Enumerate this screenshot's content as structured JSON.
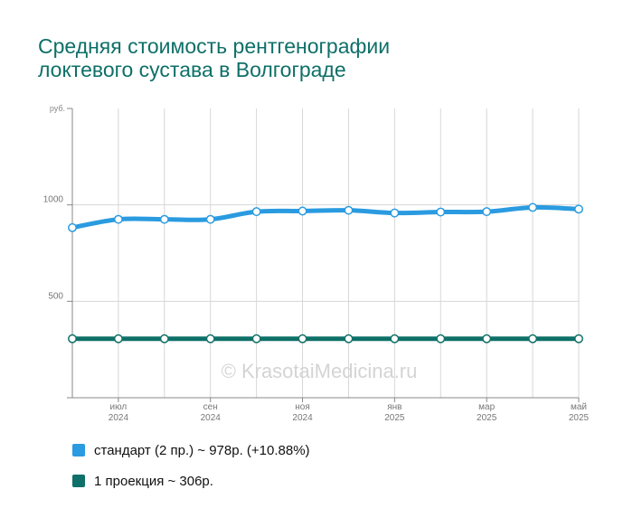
{
  "title": {
    "line1": "Средняя стоимость рентгенографии",
    "line2": "локтевого сустава в Волгограде"
  },
  "watermark": "© KrasotaiMedicina.ru",
  "chart_data": {
    "type": "line",
    "ylabel": "руб.",
    "ylim": [
      0,
      1500
    ],
    "yticks": [
      {
        "value": 1000,
        "label": "1000"
      },
      {
        "value": 500,
        "label": "500"
      }
    ],
    "x": [
      0,
      1,
      2,
      3,
      4,
      5,
      6,
      7,
      8,
      9,
      10,
      11
    ],
    "x_tick_labels": [
      {
        "index": 1,
        "month": "июл",
        "year": "2024"
      },
      {
        "index": 3,
        "month": "сен",
        "year": "2024"
      },
      {
        "index": 5,
        "month": "ноя",
        "year": "2024"
      },
      {
        "index": 7,
        "month": "янв",
        "year": "2025"
      },
      {
        "index": 9,
        "month": "мар",
        "year": "2025"
      },
      {
        "index": 11,
        "month": "май",
        "year": "2025"
      }
    ],
    "grid": true,
    "series": [
      {
        "name": "стандарт (2 пр.) ~ 978р. (+10.88%)",
        "color": "#2a9be0",
        "values": [
          882,
          925,
          925,
          925,
          965,
          968,
          972,
          958,
          963,
          965,
          987,
          978
        ]
      },
      {
        "name": "1 проекция ~ 306р.",
        "color": "#0e7068",
        "values": [
          306,
          306,
          306,
          306,
          306,
          306,
          306,
          306,
          306,
          306,
          306,
          306
        ]
      }
    ]
  }
}
